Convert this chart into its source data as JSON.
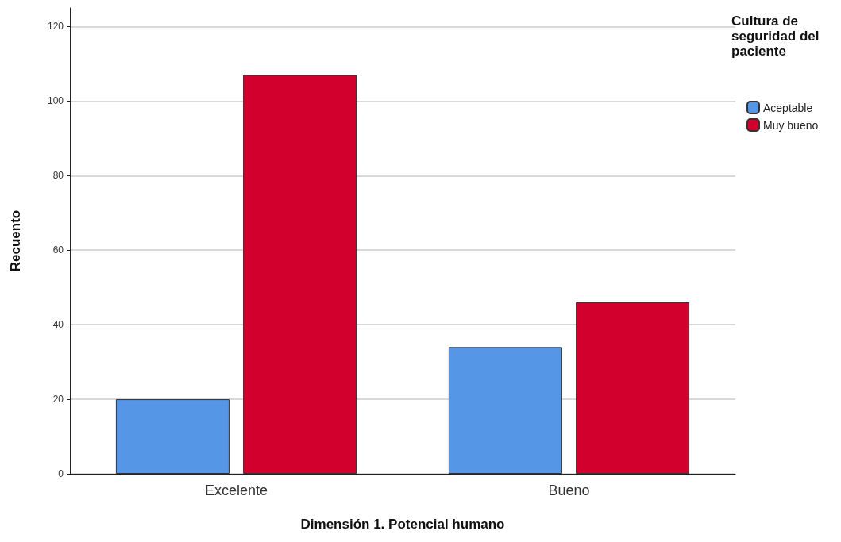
{
  "chart_data": {
    "type": "bar",
    "xlabel": "Dimensión 1. Potencial humano",
    "ylabel": "Recuento",
    "legend_title": "Cultura de seguridad del paciente",
    "categories": [
      "Excelente",
      "Bueno"
    ],
    "series": [
      {
        "name": "Aceptable",
        "color": "#5596e6",
        "values": [
          20,
          34
        ]
      },
      {
        "name": "Muy bueno",
        "color": "#d2002d",
        "values": [
          107,
          46
        ]
      }
    ],
    "ylim": [
      0,
      125
    ],
    "yticks": [
      0,
      20,
      40,
      60,
      80,
      100,
      120
    ],
    "grid": "y",
    "legend": "top right"
  }
}
